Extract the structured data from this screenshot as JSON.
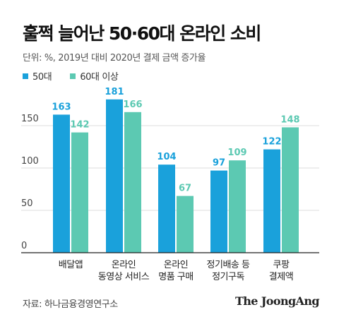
{
  "title": "훌쩍 늘어난 50·60대 온라인 소비",
  "subtitle": "단위: %, 2019년 대비 2020년 결제 금액 증가율",
  "source": "자료: 하나금융경영연구소",
  "logo": "The JoongAng",
  "colors": {
    "series1": "#1aa1db",
    "series2": "#5cc9b2",
    "axis": "#222222",
    "grid": "#dddddd"
  },
  "chart_data": {
    "type": "bar",
    "categories": [
      [
        "배달앱"
      ],
      [
        "온라인",
        "동영상 서비스"
      ],
      [
        "온라인",
        "명품 구매"
      ],
      [
        "정기배송 등",
        "정기구독"
      ],
      [
        "쿠팡",
        "결제액"
      ]
    ],
    "series": [
      {
        "name": "50대",
        "values": [
          163,
          181,
          104,
          97,
          122
        ]
      },
      {
        "name": "60대 이상",
        "values": [
          142,
          166,
          67,
          109,
          148
        ]
      }
    ],
    "ylim": [
      0,
      200
    ],
    "yticks": [
      0,
      50,
      100,
      150
    ],
    "grid": true,
    "legend": "top-left"
  }
}
